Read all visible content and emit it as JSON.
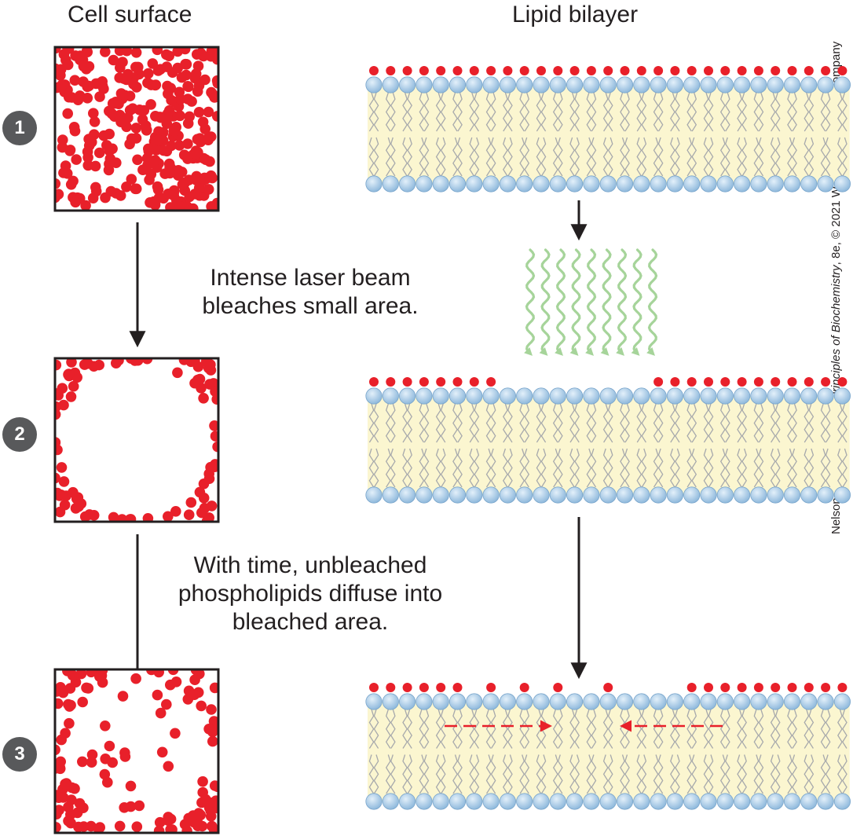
{
  "columns": {
    "left_title": "Cell surface",
    "right_title": "Lipid bilayer"
  },
  "steps": [
    "1",
    "2",
    "3"
  ],
  "captions": {
    "laser_line1": "Intense laser beam",
    "laser_line2": "bleaches small area.",
    "diffuse_line1": "With time, unbleached",
    "diffuse_line2": "phospholipids diffuse into",
    "diffuse_line3": "bleached area."
  },
  "credit": {
    "prefix": "Nelson & Cox, ",
    "book": "Lehninger Principles of Biochemistry",
    "suffix": ", 8e, © 2021 W. H. Freeman and Company"
  },
  "colors": {
    "fluorescent": "#e8202a",
    "headgroup": "#a9cbe6",
    "tail_region": "#fbf6d0",
    "tail_line": "#a7a9ac",
    "laser": "#a6d49a",
    "arrow": "#231f20",
    "badge": "#58595b"
  }
}
